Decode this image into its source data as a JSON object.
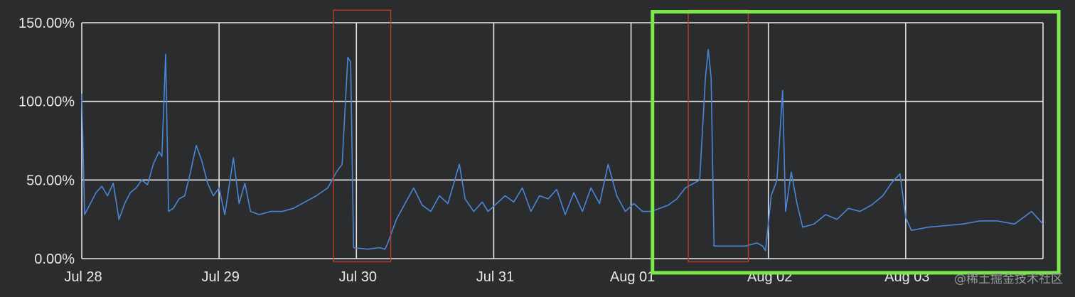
{
  "chart_data": {
    "type": "line",
    "x_unit": "days",
    "x_ticks": [
      "Jul 28",
      "Jul 29",
      "Jul 30",
      "Jul 31",
      "Aug 01",
      "Aug 02",
      "Aug 03"
    ],
    "y_ticks": [
      "0.00%",
      "50.00%",
      "100.00%",
      "150.00%"
    ],
    "ylim": [
      0,
      150
    ],
    "xlim": [
      "2023-07-28",
      "2023-08-04"
    ],
    "grid": true,
    "line_color": "#4a86d8",
    "series": [
      {
        "points": [
          [
            "2023-07-28T00:00",
            105
          ],
          [
            "2023-07-28T00:30",
            28
          ],
          [
            "2023-07-28T01:30",
            35
          ],
          [
            "2023-07-28T02:30",
            42
          ],
          [
            "2023-07-28T03:30",
            46
          ],
          [
            "2023-07-28T04:30",
            40
          ],
          [
            "2023-07-28T05:30",
            48
          ],
          [
            "2023-07-28T06:30",
            25
          ],
          [
            "2023-07-28T07:30",
            35
          ],
          [
            "2023-07-28T08:30",
            42
          ],
          [
            "2023-07-28T09:30",
            45
          ],
          [
            "2023-07-28T10:30",
            50
          ],
          [
            "2023-07-28T11:30",
            47
          ],
          [
            "2023-07-28T12:30",
            60
          ],
          [
            "2023-07-28T13:30",
            68
          ],
          [
            "2023-07-28T14:00",
            65
          ],
          [
            "2023-07-28T14:40",
            130
          ],
          [
            "2023-07-28T15:10",
            30
          ],
          [
            "2023-07-28T16:00",
            32
          ],
          [
            "2023-07-28T17:00",
            38
          ],
          [
            "2023-07-28T18:00",
            40
          ],
          [
            "2023-07-28T19:00",
            55
          ],
          [
            "2023-07-28T20:00",
            72
          ],
          [
            "2023-07-28T21:00",
            62
          ],
          [
            "2023-07-28T22:00",
            48
          ],
          [
            "2023-07-28T23:00",
            40
          ],
          [
            "2023-07-29T00:00",
            45
          ],
          [
            "2023-07-29T01:00",
            28
          ],
          [
            "2023-07-29T02:30",
            64
          ],
          [
            "2023-07-29T03:30",
            35
          ],
          [
            "2023-07-29T04:30",
            48
          ],
          [
            "2023-07-29T05:30",
            30
          ],
          [
            "2023-07-29T07:00",
            28
          ],
          [
            "2023-07-29T09:00",
            30
          ],
          [
            "2023-07-29T11:00",
            30
          ],
          [
            "2023-07-29T13:00",
            32
          ],
          [
            "2023-07-29T15:00",
            36
          ],
          [
            "2023-07-29T17:00",
            40
          ],
          [
            "2023-07-29T19:00",
            45
          ],
          [
            "2023-07-29T20:30",
            55
          ],
          [
            "2023-07-29T21:30",
            60
          ],
          [
            "2023-07-29T22:30",
            128
          ],
          [
            "2023-07-29T23:00",
            125
          ],
          [
            "2023-07-29T23:30",
            7
          ],
          [
            "2023-07-30T02:00",
            6
          ],
          [
            "2023-07-30T04:00",
            7
          ],
          [
            "2023-07-30T05:00",
            6
          ],
          [
            "2023-07-30T05:30",
            10
          ],
          [
            "2023-07-30T07:00",
            25
          ],
          [
            "2023-07-30T08:30",
            35
          ],
          [
            "2023-07-30T10:00",
            45
          ],
          [
            "2023-07-30T11:30",
            34
          ],
          [
            "2023-07-30T13:00",
            30
          ],
          [
            "2023-07-30T14:30",
            40
          ],
          [
            "2023-07-30T16:00",
            35
          ],
          [
            "2023-07-30T18:00",
            60
          ],
          [
            "2023-07-30T19:00",
            38
          ],
          [
            "2023-07-30T20:30",
            30
          ],
          [
            "2023-07-30T22:00",
            36
          ],
          [
            "2023-07-30T23:00",
            30
          ],
          [
            "2023-07-31T00:30",
            35
          ],
          [
            "2023-07-31T02:00",
            40
          ],
          [
            "2023-07-31T03:30",
            36
          ],
          [
            "2023-07-31T05:00",
            45
          ],
          [
            "2023-07-31T06:30",
            30
          ],
          [
            "2023-07-31T08:00",
            40
          ],
          [
            "2023-07-31T09:30",
            38
          ],
          [
            "2023-07-31T11:00",
            44
          ],
          [
            "2023-07-31T12:30",
            28
          ],
          [
            "2023-07-31T14:00",
            42
          ],
          [
            "2023-07-31T15:30",
            30
          ],
          [
            "2023-07-31T17:00",
            45
          ],
          [
            "2023-07-31T18:30",
            35
          ],
          [
            "2023-07-31T20:00",
            60
          ],
          [
            "2023-07-31T21:30",
            40
          ],
          [
            "2023-07-31T23:00",
            30
          ],
          [
            "2023-08-01T00:30",
            35
          ],
          [
            "2023-08-01T02:00",
            30
          ],
          [
            "2023-08-01T03:30",
            30
          ],
          [
            "2023-08-01T05:00",
            32
          ],
          [
            "2023-08-01T06:30",
            34
          ],
          [
            "2023-08-01T08:00",
            38
          ],
          [
            "2023-08-01T09:30",
            45
          ],
          [
            "2023-08-01T11:00",
            48
          ],
          [
            "2023-08-01T12:00",
            50
          ],
          [
            "2023-08-01T13:00",
            115
          ],
          [
            "2023-08-01T13:30",
            133
          ],
          [
            "2023-08-01T14:00",
            115
          ],
          [
            "2023-08-01T14:30",
            8
          ],
          [
            "2023-08-01T16:00",
            8
          ],
          [
            "2023-08-01T18:00",
            8
          ],
          [
            "2023-08-01T20:00",
            8
          ],
          [
            "2023-08-01T22:00",
            10
          ],
          [
            "2023-08-01T23:00",
            8
          ],
          [
            "2023-08-01T23:30",
            5
          ],
          [
            "2023-08-02T00:30",
            40
          ],
          [
            "2023-08-02T01:30",
            50
          ],
          [
            "2023-08-02T02:30",
            107
          ],
          [
            "2023-08-02T03:00",
            30
          ],
          [
            "2023-08-02T04:00",
            55
          ],
          [
            "2023-08-02T05:00",
            35
          ],
          [
            "2023-08-02T06:00",
            20
          ],
          [
            "2023-08-02T08:00",
            22
          ],
          [
            "2023-08-02T10:00",
            28
          ],
          [
            "2023-08-02T12:00",
            25
          ],
          [
            "2023-08-02T14:00",
            32
          ],
          [
            "2023-08-02T16:00",
            30
          ],
          [
            "2023-08-02T18:00",
            34
          ],
          [
            "2023-08-02T20:00",
            40
          ],
          [
            "2023-08-02T21:30",
            48
          ],
          [
            "2023-08-02T23:00",
            54
          ],
          [
            "2023-08-03T00:00",
            26
          ],
          [
            "2023-08-03T01:00",
            18
          ],
          [
            "2023-08-03T04:00",
            20
          ],
          [
            "2023-08-03T07:00",
            21
          ],
          [
            "2023-08-03T10:00",
            22
          ],
          [
            "2023-08-03T13:00",
            24
          ],
          [
            "2023-08-03T16:00",
            24
          ],
          [
            "2023-08-03T19:00",
            22
          ],
          [
            "2023-08-03T22:00",
            30
          ],
          [
            "2023-08-04T00:00",
            22
          ]
        ]
      }
    ]
  },
  "watermark": "@稀土掘金技术社区",
  "highlights": {
    "outage_box_color": "#c0392b",
    "improved_box_color": "#7be84a"
  }
}
